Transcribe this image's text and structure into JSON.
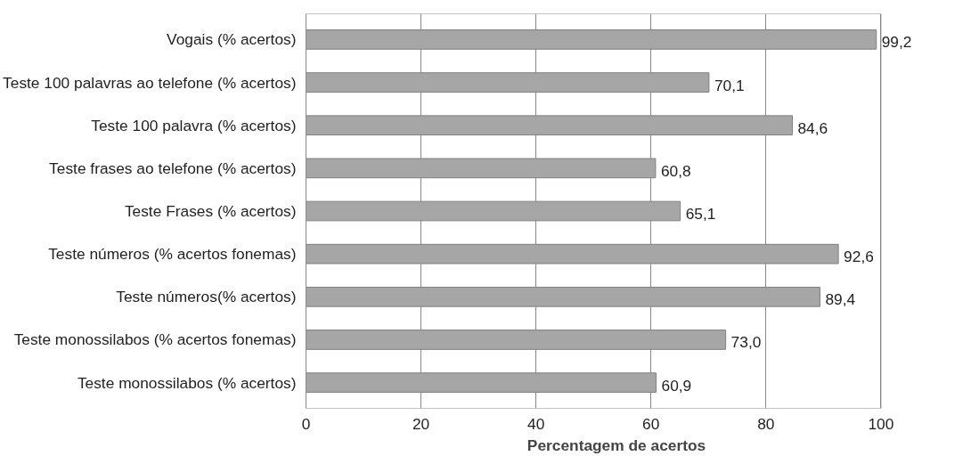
{
  "chart_data": {
    "type": "bar",
    "orientation": "horizontal",
    "xlabel": "Percentagem de acertos",
    "categories": [
      "Vogais (% acertos)",
      "Teste 100 palavras ao telefone (% acertos)",
      "Teste 100 palavra (% acertos)",
      "Teste frases ao telefone (% acertos)",
      "Teste Frases (% acertos)",
      "Teste números (% acertos fonemas)",
      "Teste números(% acertos)",
      "Teste monossilabos (% acertos fonemas)",
      "Teste monossilabos (% acertos)"
    ],
    "values": [
      99.2,
      70.1,
      84.6,
      60.8,
      65.1,
      92.6,
      89.4,
      73.0,
      60.9
    ],
    "value_labels": [
      "99,2",
      "70,1",
      "84,6",
      "60,8",
      "65,1",
      "92,6",
      "89,4",
      "73,0",
      "60,9"
    ],
    "color": "#a6a6a6",
    "xlim": [
      0,
      100
    ],
    "xticks": [
      0,
      20,
      40,
      60,
      80,
      100
    ],
    "grid": "x"
  }
}
